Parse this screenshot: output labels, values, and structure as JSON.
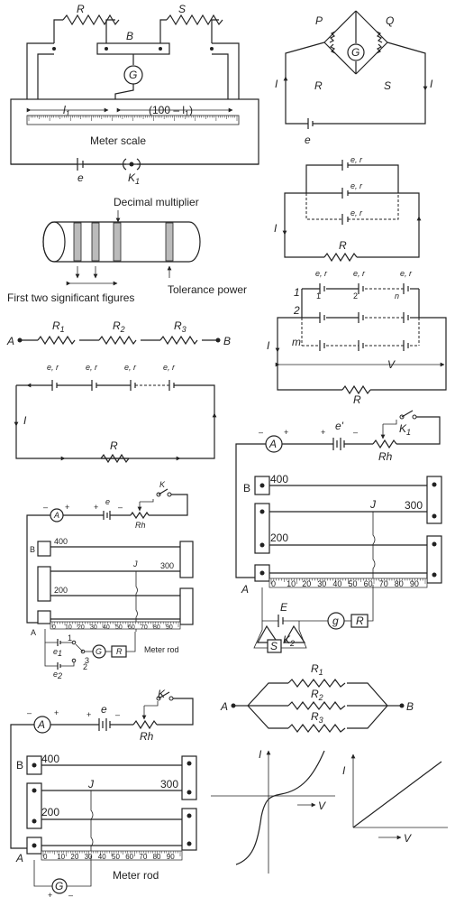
{
  "meter_bridge": {
    "R": "R",
    "S": "S",
    "B": "B",
    "G": "G",
    "l1": "l",
    "l1_sub": "1",
    "l2": "(100 – l",
    "l2_end": ")",
    "scale": "Meter scale",
    "e": "e",
    "K": "K",
    "K_sub": "1"
  },
  "wheatstone": {
    "P": "P",
    "Q": "Q",
    "R": "R",
    "S": "S",
    "G": "G",
    "I1": "I",
    "I2": "I",
    "e": "e"
  },
  "parallel_cells": {
    "er1": "e, r",
    "er2": "e, r",
    "er3": "e, r",
    "I": "I",
    "R": "R"
  },
  "resistor_code": {
    "decimal": "Decimal multiplier",
    "first_two": "First two significant figures",
    "tolerance": "Tolerance power"
  },
  "mixed_cells": {
    "er1": "e, r",
    "er2": "e, r",
    "er3": "e, r",
    "r1": "1",
    "r2": "2",
    "rn": "n",
    "row1": "1",
    "row2": "2",
    "rowm": "m",
    "I": "I",
    "V": "V",
    "R": "R"
  },
  "series_resistors": {
    "A": "A",
    "B": "B",
    "R1": "R",
    "R2": "R",
    "R3": "R",
    "s1": "1",
    "s2": "2",
    "s3": "3"
  },
  "series_cells": {
    "er1": "e, r",
    "er2": "e, r",
    "er3": "e, r",
    "er4": "e, r",
    "I": "I",
    "R": "R"
  },
  "potentiometer_small": {
    "A_meter": "A",
    "e": "e",
    "K": "K",
    "Rh": "Rh",
    "B": "B",
    "w400": "400",
    "w300": "300",
    "w200": "200",
    "J": "J",
    "A": "A",
    "scale": [
      "0",
      "10",
      "20",
      "30",
      "40",
      "50",
      "60",
      "70",
      "80",
      "90"
    ],
    "rod": "Meter rod",
    "e1": "e",
    "e1s": "1",
    "e2": "e",
    "e2s": "2",
    "n1": "1",
    "n2": "2",
    "n3": "3",
    "G": "G",
    "R": "R",
    "plus": "+",
    "minus": "–"
  },
  "potentiometer_right": {
    "A_meter": "A",
    "e": "e'",
    "K": "K",
    "K_sub": "1",
    "Rh": "Rh",
    "B": "B",
    "w400": "400",
    "w300": "300",
    "w200": "200",
    "J": "J",
    "A": "A",
    "scale": [
      "0",
      "10",
      "20",
      "30",
      "40",
      "50",
      "60",
      "70",
      "80",
      "90"
    ],
    "E": "E",
    "g": "g",
    "R": "R",
    "S": "S",
    "K2": "K",
    "K2_sub": "2",
    "plus": "+",
    "minus": "–"
  },
  "potentiometer_bottom": {
    "A_meter": "A",
    "e": "e",
    "K": "K",
    "Rh": "Rh",
    "B": "B",
    "w400": "400",
    "w300": "300",
    "w200": "200",
    "J": "J",
    "A": "A",
    "scale": [
      "0",
      "10",
      "20",
      "30",
      "40",
      "50",
      "60",
      "70",
      "80",
      "90"
    ],
    "rod": "Meter rod",
    "G": "G",
    "plus": "+",
    "minus": "–"
  },
  "parallel_resistors": {
    "A": "A",
    "B": "B",
    "R1": "R",
    "R2": "R",
    "R3": "R",
    "s1": "1",
    "s2": "2",
    "s3": "3"
  },
  "graphs": {
    "I1": "I",
    "V1": "V",
    "I2": "I",
    "V2": "V"
  }
}
